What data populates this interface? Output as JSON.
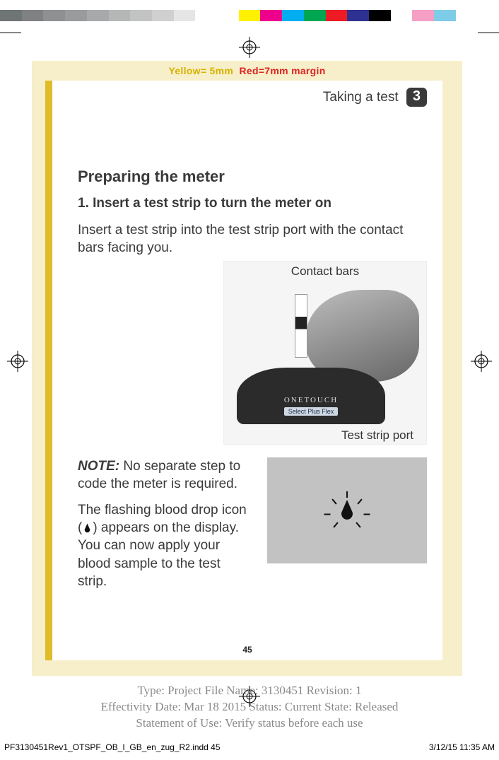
{
  "colorbar": [
    "#6f7475",
    "#808183",
    "#8e9091",
    "#9a9b9c",
    "#a8a9aa",
    "#b5b6b6",
    "#c2c3c3",
    "#d0d0d0",
    "#e5e5e5",
    "#ffffff",
    "#ffffff",
    "#fff100",
    "#ec008c",
    "#00aeef",
    "#00a651",
    "#ed1c24",
    "#2e3192",
    "#000000",
    "#ffffff",
    "#f59fc5",
    "#7ecde8",
    "#ffffff",
    "#ffffff"
  ],
  "margin_banner_yellow": "Yellow= 5mm",
  "margin_banner_red": "Red=7mm margin",
  "chapter": {
    "title": "Taking a test",
    "num": "3"
  },
  "section_title": "Preparing the meter",
  "step_heading": "1. Insert a test strip to turn the meter on",
  "step_body": "Insert a test strip into the test strip port with the contact bars facing you.",
  "figure": {
    "label_top": "Contact bars",
    "label_bottom": "Test strip port",
    "brand": "ONETOUCH",
    "brand_sub": "Select Plus Flex"
  },
  "note_label": "NOTE:",
  "note_body1": " No separate step to code the meter is required.",
  "note_body2a": "The flashing blood drop icon (",
  "note_body2b": ") appears on the display. You can now apply your blood sample to the test strip.",
  "page_number": "45",
  "tail_line1": "Type: Project File  Name: 3130451  Revision: 1",
  "tail_line2": "Effectivity Date: Mar 18 2015     Status: Current     State: Released",
  "tail_line3": "Statement of Use: Verify status before each use",
  "folio_file": "PF3130451Rev1_OTSPF_OB_I_GB_en_zug_R2.indd   45",
  "folio_date": "3/12/15   11:35 AM"
}
